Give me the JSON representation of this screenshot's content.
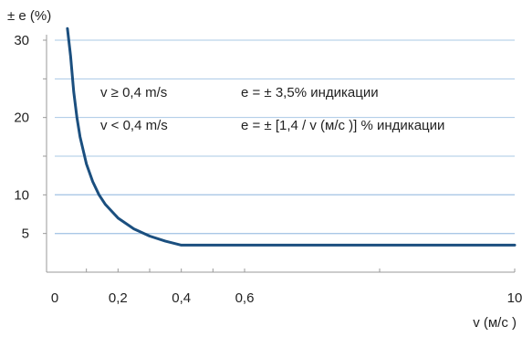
{
  "chart_data": {
    "type": "line",
    "ylabel": "± e (%)",
    "xlabel": "v (м/с )",
    "x_ticks": [
      "0",
      "0,2",
      "0,4",
      "0,6",
      "10"
    ],
    "y_ticks": [
      "30",
      "20",
      "10",
      "5"
    ],
    "xlim": [
      0,
      1
    ],
    "ylim": [
      0,
      30
    ],
    "grid_y": [
      5,
      10,
      15,
      20,
      25,
      30
    ],
    "grid": true,
    "series": [
      {
        "color": "#1b4f7f",
        "x": [
          0.04,
          0.05,
          0.06,
          0.07,
          0.08,
          0.1,
          0.12,
          0.14,
          0.16,
          0.2,
          0.25,
          0.3,
          0.35,
          0.4,
          1.0
        ],
        "values": [
          35,
          28,
          23.3,
          20,
          17.5,
          14,
          11.7,
          10,
          8.75,
          7,
          5.6,
          4.67,
          4,
          3.5,
          3.5
        ]
      }
    ],
    "annotations": [
      {
        "condition": "v ≥ 0,4 m/s",
        "formula": "e = ± 3,5% индикации"
      },
      {
        "condition": "v < 0,4 m/s",
        "formula": "e = ± [1,4 / v (м/с )] % индикации"
      }
    ]
  },
  "colors": {
    "curve": "#1b4f7f",
    "grid": "#aac8e6",
    "axis": "#999999",
    "text": "#222222"
  }
}
